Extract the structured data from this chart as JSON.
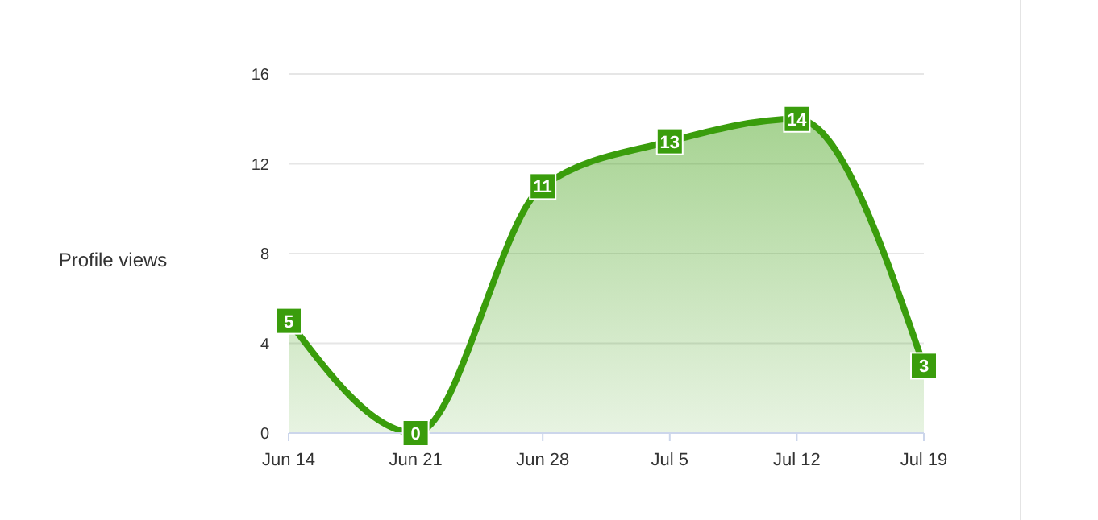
{
  "chart_data": {
    "type": "area",
    "ylabel": "Profile views",
    "categories": [
      "Jun 14",
      "Jun 21",
      "Jun 28",
      "Jul 5",
      "Jul 12",
      "Jul 19"
    ],
    "series": [
      {
        "color": "#3a9d0c",
        "values": [
          5,
          0,
          11,
          13,
          14,
          3
        ]
      }
    ],
    "ylim": [
      0,
      16
    ],
    "yticks": [
      0,
      4,
      8,
      12,
      16
    ],
    "grid": "y",
    "data_labels": true
  }
}
